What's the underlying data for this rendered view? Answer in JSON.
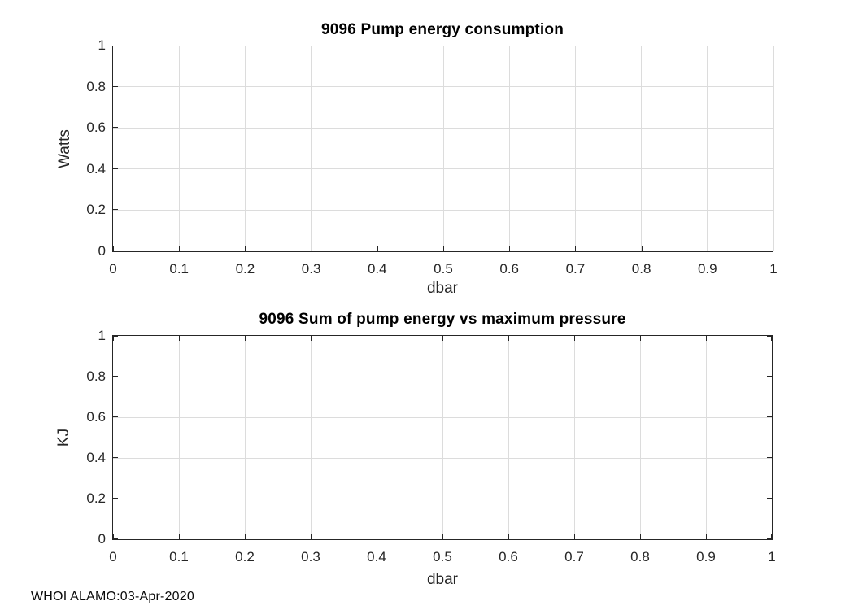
{
  "figure": {
    "footer": "WHOI ALAMO:03-Apr-2020",
    "colors": {
      "axis": "#262626",
      "grid": "#dcdcdc",
      "tick_label": "#262626",
      "title": "#000000",
      "background": "#ffffff"
    }
  },
  "chart_data": [
    {
      "type": "line",
      "title": "9096 Pump energy consumption",
      "xlabel": "dbar",
      "ylabel": "Watts",
      "xlim": [
        0,
        1
      ],
      "ylim": [
        0,
        1
      ],
      "xticks": [
        0,
        0.1,
        0.2,
        0.3,
        0.4,
        0.5,
        0.6,
        0.7,
        0.8,
        0.9,
        1
      ],
      "xtick_labels": [
        "0",
        "0.1",
        "0.2",
        "0.3",
        "0.4",
        "0.5",
        "0.6",
        "0.7",
        "0.8",
        "0.9",
        "1"
      ],
      "yticks": [
        0,
        0.2,
        0.4,
        0.6,
        0.8,
        1
      ],
      "ytick_labels": [
        "0",
        "0.2",
        "0.4",
        "0.6",
        "0.8",
        "1"
      ],
      "grid": true,
      "box": false,
      "legend": null,
      "series": []
    },
    {
      "type": "line",
      "title": "9096 Sum of pump energy vs maximum pressure",
      "xlabel": "dbar",
      "ylabel": "KJ",
      "xlim": [
        0,
        1
      ],
      "ylim": [
        0,
        1
      ],
      "xticks": [
        0,
        0.1,
        0.2,
        0.3,
        0.4,
        0.5,
        0.6,
        0.7,
        0.8,
        0.9,
        1
      ],
      "xtick_labels": [
        "0",
        "0.1",
        "0.2",
        "0.3",
        "0.4",
        "0.5",
        "0.6",
        "0.7",
        "0.8",
        "0.9",
        "1"
      ],
      "yticks": [
        0,
        0.2,
        0.4,
        0.6,
        0.8,
        1
      ],
      "ytick_labels": [
        "0",
        "0.2",
        "0.4",
        "0.6",
        "0.8",
        "1"
      ],
      "grid": true,
      "box": true,
      "legend": null,
      "series": []
    }
  ]
}
